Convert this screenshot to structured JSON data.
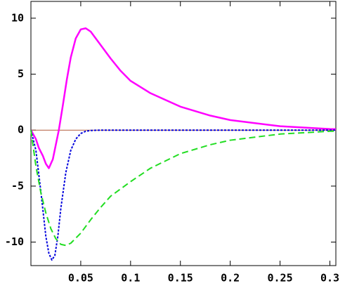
{
  "chart_data": {
    "type": "line",
    "xlim": [
      0,
      0.306
    ],
    "ylim": [
      -12.1,
      11.5
    ],
    "xticks": [
      0.05,
      0.1,
      0.15,
      0.2,
      0.25,
      0.3
    ],
    "yticks": [
      -10,
      -5,
      0,
      5,
      10
    ],
    "series": [
      {
        "color": "#b05a3c",
        "dash": "solid",
        "width": 1,
        "x": [
          0,
          0.306
        ],
        "values": [
          0,
          0
        ]
      },
      {
        "color": "#ff00ff",
        "dash": "solid",
        "width": 2.5,
        "x": [
          0,
          0.005,
          0.008,
          0.012,
          0.015,
          0.018,
          0.022,
          0.025,
          0.028,
          0.032,
          0.036,
          0.04,
          0.045,
          0.05,
          0.055,
          0.06,
          0.07,
          0.08,
          0.09,
          0.1,
          0.12,
          0.15,
          0.18,
          0.2,
          0.25,
          0.3,
          0.306
        ],
        "values": [
          0,
          -0.8,
          -1.6,
          -2.3,
          -3.0,
          -3.4,
          -2.6,
          -1.3,
          0,
          2.2,
          4.5,
          6.5,
          8.2,
          9.0,
          9.1,
          8.8,
          7.6,
          6.4,
          5.3,
          4.4,
          3.3,
          2.1,
          1.3,
          0.9,
          0.35,
          0.1,
          0.09
        ]
      },
      {
        "color": "#0000dd",
        "dash": "dotted",
        "width": 2,
        "x": [
          0,
          0.005,
          0.01,
          0.015,
          0.018,
          0.021,
          0.024,
          0.027,
          0.03,
          0.035,
          0.04,
          0.045,
          0.05,
          0.055,
          0.06,
          0.07,
          0.1,
          0.2,
          0.306
        ],
        "values": [
          0,
          -1.8,
          -5.5,
          -9.5,
          -11.0,
          -11.6,
          -11.2,
          -9.5,
          -7.0,
          -3.8,
          -1.8,
          -0.8,
          -0.3,
          -0.1,
          -0.03,
          0,
          0,
          0,
          0
        ]
      },
      {
        "color": "#22dd22",
        "dash": "dashed",
        "width": 2,
        "x": [
          0,
          0.005,
          0.01,
          0.015,
          0.02,
          0.025,
          0.03,
          0.035,
          0.04,
          0.05,
          0.06,
          0.07,
          0.08,
          0.1,
          0.12,
          0.15,
          0.18,
          0.2,
          0.25,
          0.3,
          0.306
        ],
        "values": [
          0,
          -3.2,
          -5.6,
          -7.4,
          -8.8,
          -9.7,
          -10.2,
          -10.3,
          -10.1,
          -9.2,
          -8.0,
          -6.9,
          -5.9,
          -4.6,
          -3.4,
          -2.1,
          -1.3,
          -0.9,
          -0.35,
          -0.1,
          -0.09
        ]
      }
    ]
  }
}
